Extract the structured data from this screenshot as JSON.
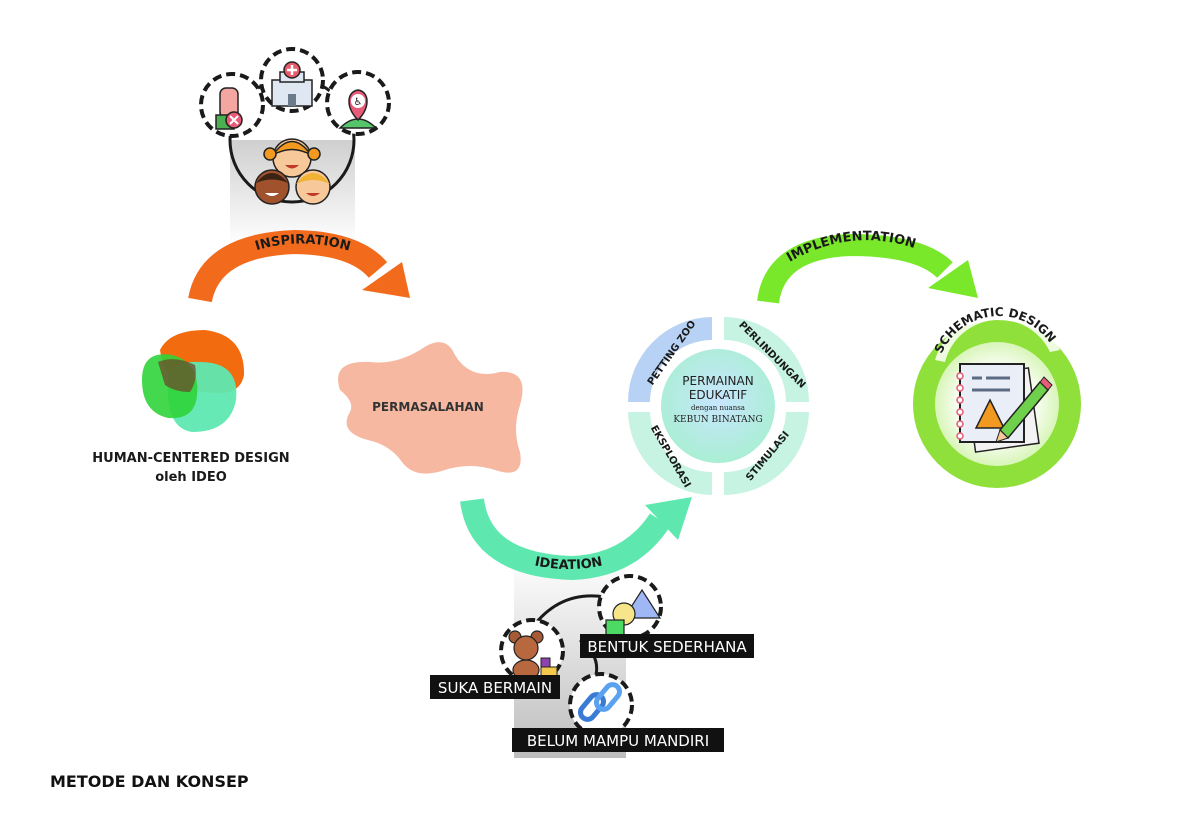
{
  "title": "METODE DAN KONSEP",
  "human_centered": {
    "line1": "HUMAN-CENTERED DESIGN",
    "line2": "oleh IDEO"
  },
  "arrows": {
    "inspiration": "INSPIRATION",
    "ideation": "IDEATION",
    "implementation": "IMPLEMENTATION"
  },
  "problem": "PERMASALAHAN",
  "concept": {
    "center_line1": "PERMAINAN",
    "center_line2": "EDUKATIF",
    "center_line3": "dengan nuansa",
    "center_line4": "KEBUN BINATANG",
    "segments": [
      "PETTING ZOO",
      "PERLINDUNGAN",
      "EKSPLORASI",
      "STIMULASI"
    ]
  },
  "schematic": "SCHEMATIC DESIGN",
  "ideation_items": [
    "SUKA BERMAIN",
    "BENTUK SEDERHANA",
    "BELUM MAMPU MANDIRI"
  ],
  "colors": {
    "inspiration": "#f26b1d",
    "ideation": "#5ee8b0",
    "implementation": "#7ae82a",
    "problem": "#f7b8a2",
    "concept_ring": "#c6f3e2",
    "petting_zoo": "#b8d2f5"
  },
  "icons": [
    "hand-stop-icon",
    "hospital-icon",
    "accessibility-pin-icon",
    "children-faces-icon",
    "teddy-bear-icon",
    "shapes-icon",
    "chain-link-icon",
    "notebook-pencil-icon"
  ]
}
